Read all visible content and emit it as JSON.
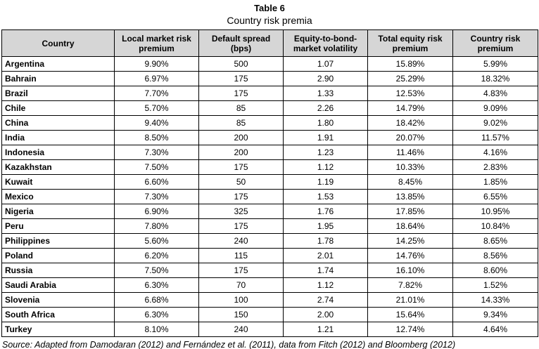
{
  "title": "Table 6",
  "subtitle": "Country risk premia",
  "table": {
    "headers": [
      "Country",
      "Local market risk premium",
      "Default spread (bps)",
      "Equity-to-bond-market volatility",
      "Total equity risk premium",
      "Country risk premium"
    ],
    "rows": [
      {
        "country": "Argentina",
        "local_mrp": "9.90%",
        "default_spread": "500",
        "volatility": "1.07",
        "total_erp": "15.89%",
        "crp": "5.99%"
      },
      {
        "country": "Bahrain",
        "local_mrp": "6.97%",
        "default_spread": "175",
        "volatility": "2.90",
        "total_erp": "25.29%",
        "crp": "18.32%"
      },
      {
        "country": "Brazil",
        "local_mrp": "7.70%",
        "default_spread": "175",
        "volatility": "1.33",
        "total_erp": "12.53%",
        "crp": "4.83%"
      },
      {
        "country": "Chile",
        "local_mrp": "5.70%",
        "default_spread": "85",
        "volatility": "2.26",
        "total_erp": "14.79%",
        "crp": "9.09%"
      },
      {
        "country": "China",
        "local_mrp": "9.40%",
        "default_spread": "85",
        "volatility": "1.80",
        "total_erp": "18.42%",
        "crp": "9.02%"
      },
      {
        "country": "India",
        "local_mrp": "8.50%",
        "default_spread": "200",
        "volatility": "1.91",
        "total_erp": "20.07%",
        "crp": "11.57%"
      },
      {
        "country": "Indonesia",
        "local_mrp": "7.30%",
        "default_spread": "200",
        "volatility": "1.23",
        "total_erp": "11.46%",
        "crp": "4.16%"
      },
      {
        "country": "Kazakhstan",
        "local_mrp": "7.50%",
        "default_spread": "175",
        "volatility": "1.12",
        "total_erp": "10.33%",
        "crp": "2.83%"
      },
      {
        "country": "Kuwait",
        "local_mrp": "6.60%",
        "default_spread": "50",
        "volatility": "1.19",
        "total_erp": "8.45%",
        "crp": "1.85%"
      },
      {
        "country": "Mexico",
        "local_mrp": "7.30%",
        "default_spread": "175",
        "volatility": "1.53",
        "total_erp": "13.85%",
        "crp": "6.55%"
      },
      {
        "country": "Nigeria",
        "local_mrp": "6.90%",
        "default_spread": "325",
        "volatility": "1.76",
        "total_erp": "17.85%",
        "crp": "10.95%"
      },
      {
        "country": "Peru",
        "local_mrp": "7.80%",
        "default_spread": "175",
        "volatility": "1.95",
        "total_erp": "18.64%",
        "crp": "10.84%"
      },
      {
        "country": "Philippines",
        "local_mrp": "5.60%",
        "default_spread": "240",
        "volatility": "1.78",
        "total_erp": "14.25%",
        "crp": "8.65%"
      },
      {
        "country": "Poland",
        "local_mrp": "6.20%",
        "default_spread": "115",
        "volatility": "2.01",
        "total_erp": "14.76%",
        "crp": "8.56%"
      },
      {
        "country": "Russia",
        "local_mrp": "7.50%",
        "default_spread": "175",
        "volatility": "1.74",
        "total_erp": "16.10%",
        "crp": "8.60%"
      },
      {
        "country": "Saudi Arabia",
        "local_mrp": "6.30%",
        "default_spread": "70",
        "volatility": "1.12",
        "total_erp": "7.82%",
        "crp": "1.52%"
      },
      {
        "country": "Slovenia",
        "local_mrp": "6.68%",
        "default_spread": "100",
        "volatility": "2.74",
        "total_erp": "21.01%",
        "crp": "14.33%"
      },
      {
        "country": "South Africa",
        "local_mrp": "6.30%",
        "default_spread": "150",
        "volatility": "2.00",
        "total_erp": "15.64%",
        "crp": "9.34%"
      },
      {
        "country": "Turkey",
        "local_mrp": "8.10%",
        "default_spread": "240",
        "volatility": "1.21",
        "total_erp": "12.74%",
        "crp": "4.64%"
      }
    ]
  },
  "source": "Source: Adapted from Damodaran (2012) and Fernández et al. (2011), data from Fitch (2012) and Bloomberg (2012)"
}
